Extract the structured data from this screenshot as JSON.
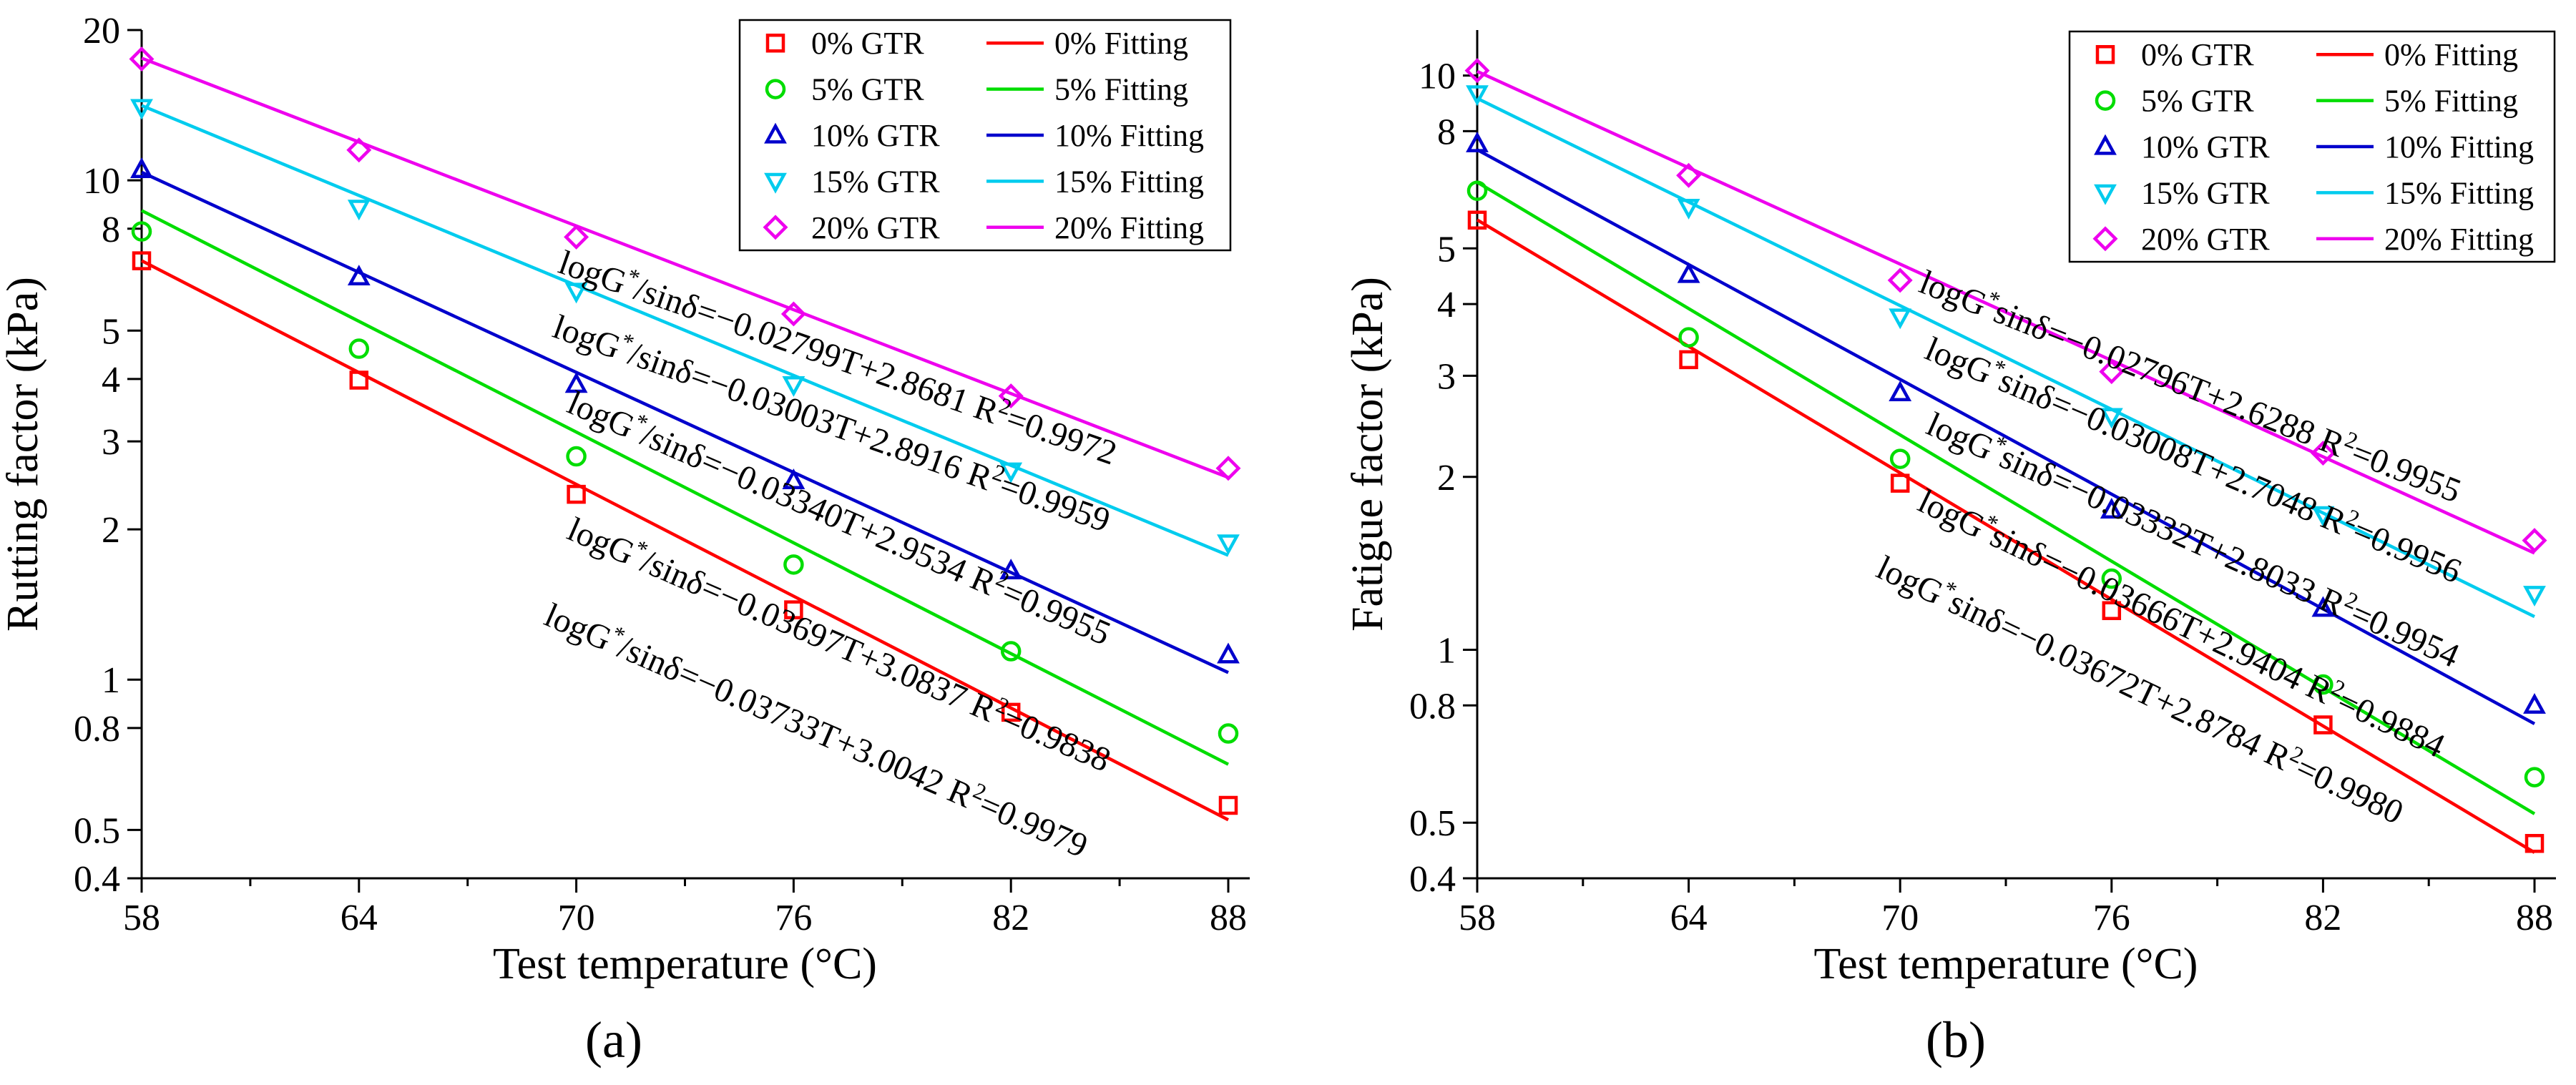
{
  "figure": {
    "panel_labels": [
      "(a)",
      "(b)"
    ]
  },
  "chart_data": [
    {
      "type": "scatter",
      "panel": "(a)",
      "xlabel": "Test temperature (°C)",
      "ylabel": "Rutting factor (kPa)",
      "yscale": "log",
      "xlim": [
        58,
        88
      ],
      "ylim": [
        0.4,
        20
      ],
      "x_ticks": [
        58,
        64,
        70,
        76,
        82,
        88
      ],
      "y_ticks": [
        0.4,
        0.5,
        0.8,
        1,
        2,
        3,
        4,
        5,
        8,
        10,
        20
      ],
      "y_tick_labels": [
        "0.4",
        "0.5",
        "0.8",
        "1",
        "2",
        "3",
        "4",
        "5",
        "8",
        "10",
        "20"
      ],
      "x": [
        58,
        64,
        70,
        76,
        82,
        88
      ],
      "legend_position": "top-right",
      "series": [
        {
          "name": "0% GTR",
          "fit_name": "0% Fitting",
          "marker": "square",
          "color": "#ff0000",
          "values": [
            6.9,
            3.98,
            2.35,
            1.38,
            0.86,
            0.56
          ],
          "fit": {
            "slope": -0.03733,
            "intercept": 3.0042
          },
          "equation": "logG*/sinδ=−0.03733T+3.0042  R2=0.9979"
        },
        {
          "name": "5% GTR",
          "fit_name": "5% Fitting",
          "marker": "circle",
          "color": "#00dd00",
          "values": [
            7.9,
            4.6,
            2.8,
            1.7,
            1.14,
            0.78
          ],
          "fit": {
            "slope": -0.03697,
            "intercept": 3.0837
          },
          "equation": "logG*/sinδ=−0.03697T+3.0837  R2=0.9838"
        },
        {
          "name": "10% GTR",
          "fit_name": "10% Fitting",
          "marker": "triangle-up",
          "color": "#0000cc",
          "values": [
            10.5,
            6.4,
            3.9,
            2.5,
            1.65,
            1.12
          ],
          "fit": {
            "slope": -0.0334,
            "intercept": 2.9534
          },
          "equation": "logG*/sinδ=−0.03340T+2.9534  R2=0.9955"
        },
        {
          "name": "15% GTR",
          "fit_name": "15% Fitting",
          "marker": "triangle-down",
          "color": "#00ccee",
          "values": [
            14.0,
            8.8,
            6.0,
            3.9,
            2.62,
            1.88
          ],
          "fit": {
            "slope": -0.03003,
            "intercept": 2.8916
          },
          "equation": "logG*/sinδ=−0.03003T+2.8916  R2=0.9959"
        },
        {
          "name": "20% GTR",
          "fit_name": "20% Fitting",
          "marker": "diamond",
          "color": "#ee00ee",
          "values": [
            17.5,
            11.5,
            7.7,
            5.4,
            3.7,
            2.65
          ],
          "fit": {
            "slope": -0.02799,
            "intercept": 2.8681
          },
          "equation": "logG*/sinδ=−0.02799T+2.8681  R2=0.9972"
        }
      ]
    },
    {
      "type": "scatter",
      "panel": "(b)",
      "xlabel": "Test temperature (°C)",
      "ylabel": "Fatigue factor (kPa)",
      "yscale": "log",
      "xlim": [
        58,
        88
      ],
      "ylim": [
        0.4,
        12
      ],
      "x_ticks": [
        58,
        64,
        70,
        76,
        82,
        88
      ],
      "y_ticks": [
        0.4,
        0.5,
        0.8,
        1,
        2,
        3,
        4,
        5,
        8,
        10
      ],
      "y_tick_labels": [
        "0.4",
        "0.5",
        "0.8",
        "1",
        "2",
        "3",
        "4",
        "5",
        "8",
        "10"
      ],
      "x": [
        58,
        64,
        70,
        76,
        82,
        88
      ],
      "legend_position": "top-right",
      "series": [
        {
          "name": "0% GTR",
          "fit_name": "0% Fitting",
          "marker": "square",
          "color": "#ff0000",
          "values": [
            5.6,
            3.2,
            1.95,
            1.17,
            0.74,
            0.46
          ],
          "fit": {
            "slope": -0.03672,
            "intercept": 2.8784
          },
          "equation": "logG*sinδ=−0.03672T+2.8784  R2=0.9980"
        },
        {
          "name": "5% GTR",
          "fit_name": "5% Fitting",
          "marker": "circle",
          "color": "#00dd00",
          "values": [
            6.3,
            3.5,
            2.15,
            1.33,
            0.87,
            0.6
          ],
          "fit": {
            "slope": -0.03666,
            "intercept": 2.9404
          },
          "equation": "logG*sinδ=−0.03666T+2.9404  R2=0.9884"
        },
        {
          "name": "10% GTR",
          "fit_name": "10% Fitting",
          "marker": "triangle-up",
          "color": "#0000cc",
          "values": [
            7.6,
            4.5,
            2.8,
            1.75,
            1.18,
            0.8
          ],
          "fit": {
            "slope": -0.03332,
            "intercept": 2.8033
          },
          "equation": "logG*sinδ=−0.03332T+2.8033  R2=0.9954"
        },
        {
          "name": "15% GTR",
          "fit_name": "15% Fitting",
          "marker": "triangle-down",
          "color": "#00ccee",
          "values": [
            9.3,
            5.9,
            3.8,
            2.55,
            1.72,
            1.25
          ],
          "fit": {
            "slope": -0.03008,
            "intercept": 2.7048
          },
          "equation": "logG*sinδ=−0.03008T+2.7048  R2=0.9956"
        },
        {
          "name": "20% GTR",
          "fit_name": "20% Fitting",
          "marker": "diamond",
          "color": "#ee00ee",
          "values": [
            10.2,
            6.7,
            4.4,
            3.05,
            2.2,
            1.55
          ],
          "fit": {
            "slope": -0.02796,
            "intercept": 2.6288
          },
          "equation": "logG*sinδ=−0.02796T+2.6288  R2=0.9955"
        }
      ]
    }
  ]
}
